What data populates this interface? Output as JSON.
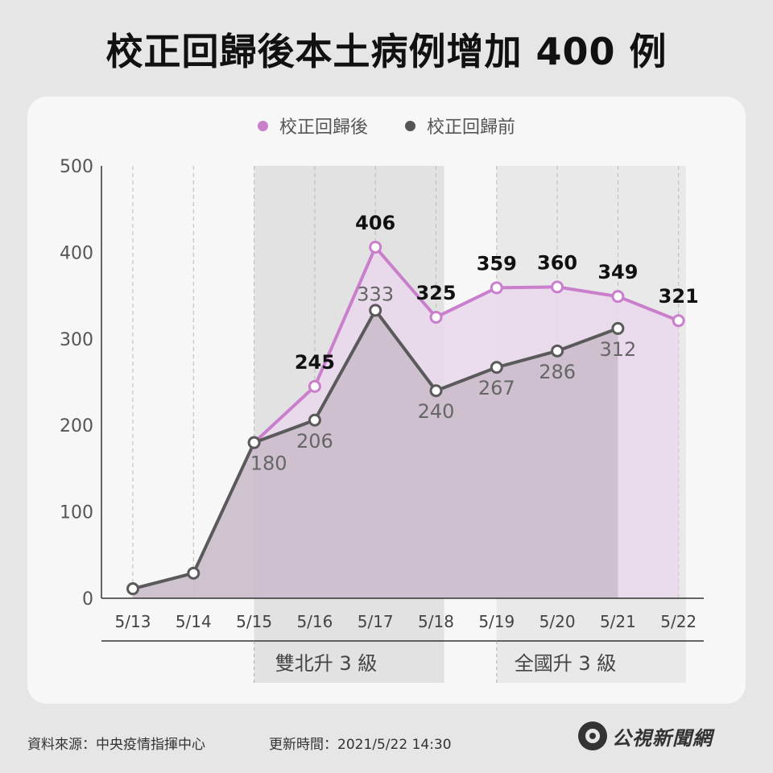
{
  "title": "校正回歸後本土病例增加 400 例",
  "legend": [
    {
      "label": "校正回歸後",
      "color": "#c97fcc"
    },
    {
      "label": "校正回歸前",
      "color": "#555555"
    }
  ],
  "chart_data": {
    "type": "line",
    "categories": [
      "5/13",
      "5/14",
      "5/15",
      "5/16",
      "5/17",
      "5/18",
      "5/19",
      "5/20",
      "5/21",
      "5/22"
    ],
    "ylim": [
      0,
      500
    ],
    "yticks": [
      "0",
      "100",
      "200",
      "300",
      "400",
      "500"
    ],
    "grid": "vertical dashed",
    "legend_position": "top-center",
    "series": [
      {
        "name": "校正回歸後",
        "color": "#c97fcc",
        "values": [
          null,
          null,
          180,
          245,
          406,
          325,
          359,
          360,
          349,
          321
        ],
        "labels": [
          "",
          "",
          "",
          "245",
          "406",
          "325",
          "359",
          "360",
          "349",
          "321"
        ]
      },
      {
        "name": "校正回歸前",
        "color": "#5a5a5a",
        "values": [
          11,
          29,
          180,
          206,
          333,
          240,
          267,
          286,
          312,
          null
        ],
        "labels": [
          "",
          "",
          "180",
          "206",
          "333",
          "240",
          "267",
          "286",
          "312",
          ""
        ]
      }
    ],
    "annotations": [
      {
        "label": "雙北升 3 級",
        "from": "5/15",
        "to": "5/18"
      },
      {
        "label": "全國升 3 級",
        "from": "5/19",
        "to": "5/22"
      }
    ]
  },
  "footer": {
    "source": "資料來源：中央疫情指揮中心",
    "updated": "更新時間：2021/5/22 14:30",
    "brand": "公視新聞網"
  }
}
